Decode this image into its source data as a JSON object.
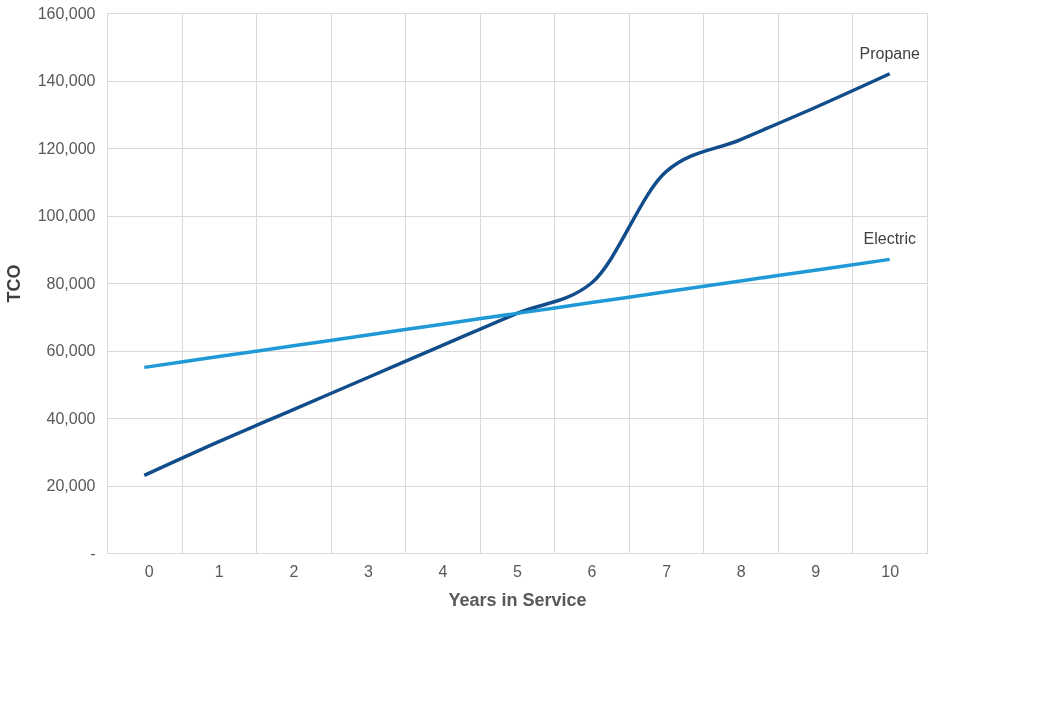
{
  "chart_data": {
    "type": "line",
    "xlabel": "Years in Service",
    "ylabel": "TCO",
    "categories": [
      "0",
      "1",
      "2",
      "3",
      "4",
      "5",
      "6",
      "7",
      "8",
      "9",
      "10"
    ],
    "series": [
      {
        "name": "Propane",
        "color": "#114d8b",
        "values": [
          23000,
          33000,
          42500,
          52000,
          61500,
          71000,
          80000,
          113000,
          122500,
          132000,
          142000
        ]
      },
      {
        "name": "Electric",
        "color": "#1f9ad6",
        "values": [
          55000,
          58200,
          61400,
          64600,
          67800,
          71000,
          74200,
          77400,
          80600,
          83800,
          87000
        ]
      }
    ],
    "ylim": [
      0,
      160000
    ],
    "yticks": [
      {
        "value": 0,
        "label": "-"
      },
      {
        "value": 20000,
        "label": "20,000"
      },
      {
        "value": 40000,
        "label": "40,000"
      },
      {
        "value": 60000,
        "label": "60,000"
      },
      {
        "value": 80000,
        "label": "80,000"
      },
      {
        "value": 100000,
        "label": "100,000"
      },
      {
        "value": 120000,
        "label": "120,000"
      },
      {
        "value": 140000,
        "label": "140,000"
      },
      {
        "value": 160000,
        "label": "160,000"
      }
    ],
    "grid": true,
    "legend": false,
    "marker": "none",
    "line_style": "solid"
  }
}
